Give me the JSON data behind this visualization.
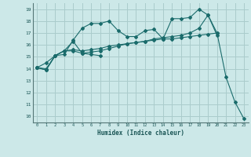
{
  "background_color": "#cce8e8",
  "grid_color": "#aacccc",
  "line_color": "#1a6b6b",
  "xlabel": "Humidex (Indice chaleur)",
  "xlim": [
    -0.5,
    23.5
  ],
  "ylim": [
    9.5,
    19.5
  ],
  "xticks": [
    0,
    1,
    2,
    3,
    4,
    5,
    6,
    7,
    8,
    9,
    10,
    11,
    12,
    13,
    14,
    15,
    16,
    17,
    18,
    19,
    20,
    21,
    22,
    23
  ],
  "yticks": [
    10,
    11,
    12,
    13,
    14,
    15,
    16,
    17,
    18,
    19
  ],
  "series": [
    {
      "x": [
        0,
        1,
        2,
        3,
        4,
        5,
        6,
        7,
        8,
        9,
        10,
        11,
        12,
        13,
        14,
        15,
        16,
        17,
        18,
        19,
        20
      ],
      "y": [
        14.1,
        13.9,
        15.1,
        15.2,
        16.4,
        17.4,
        17.8,
        17.8,
        18.0,
        17.2,
        16.7,
        16.7,
        17.2,
        17.3,
        16.5,
        18.2,
        18.2,
        18.3,
        19.0,
        18.5,
        16.8
      ]
    },
    {
      "x": [
        0,
        1,
        2,
        3,
        4,
        5,
        6,
        7
      ],
      "y": [
        14.1,
        13.9,
        15.1,
        15.5,
        16.3,
        15.3,
        15.2,
        15.1
      ]
    },
    {
      "x": [
        0,
        1,
        2,
        3,
        4,
        5,
        6,
        7,
        8,
        9,
        10,
        11,
        12,
        13,
        14,
        15,
        16,
        17,
        18,
        19,
        20
      ],
      "y": [
        14.1,
        14.5,
        15.1,
        15.5,
        15.6,
        15.5,
        15.6,
        15.7,
        15.9,
        16.0,
        16.1,
        16.2,
        16.3,
        16.4,
        16.5,
        16.5,
        16.6,
        16.7,
        16.8,
        16.9,
        17.0
      ]
    },
    {
      "x": [
        0,
        1,
        2,
        3,
        4,
        5,
        6,
        7,
        8,
        9,
        10,
        11,
        12,
        13,
        14,
        15,
        16,
        17,
        18,
        19,
        20,
        21,
        22,
        23
      ],
      "y": [
        14.1,
        14.0,
        15.1,
        15.5,
        15.5,
        15.3,
        15.4,
        15.5,
        15.7,
        15.9,
        16.1,
        16.2,
        16.3,
        16.5,
        16.6,
        16.7,
        16.8,
        17.0,
        17.4,
        18.5,
        17.0,
        13.3,
        11.2,
        9.8
      ]
    }
  ]
}
